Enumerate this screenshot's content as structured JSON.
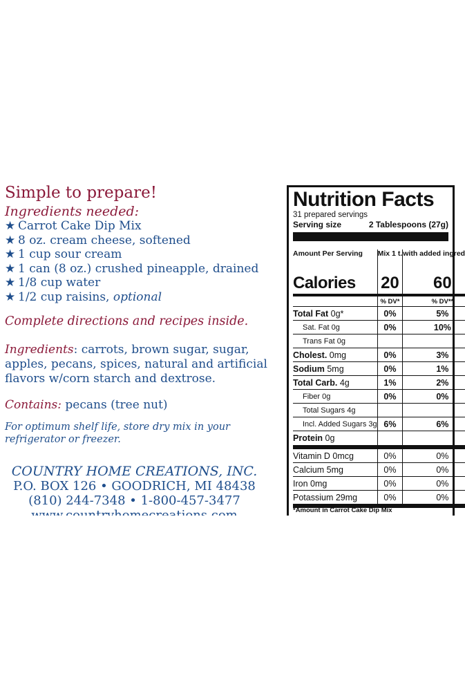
{
  "left": {
    "simple": "Simple to prepare!",
    "needed": "Ingredients needed:",
    "list": [
      "Carrot Cake Dip Mix",
      "8 oz. cream cheese, softened",
      "1 cup sour cream",
      "1 can (8 oz.) crushed pineapple, drained",
      "1/8 cup water",
      "1/2 cup raisins,"
    ],
    "list_optional": "optional",
    "star": "★",
    "complete": "Complete directions and recipes inside.",
    "ingredients_heading": "Ingredients",
    "ingredients_text": ":  carrots, brown sugar, sugar, apples, pecans, spices, natural and artificial flavors w/corn starch and dextrose.",
    "contains_heading": "Contains:",
    "contains_text": " pecans (tree nut)",
    "shelf": "For optimum shelf life, store dry mix in your refrigerator or freezer.",
    "company": "COUNTRY HOME CREATIONS, INC.",
    "address": "P.O. BOX 126 • GOODRICH, MI 48438",
    "phones": "(810) 244-7348 • 1-800-457-3477",
    "website": "www.countryhomecreations.com"
  },
  "nutrition": {
    "title": "Nutrition Facts",
    "servings": "31 prepared servings",
    "serving_size_label": "Serving size",
    "serving_size_value": "2 Tablespoons (27g)",
    "amount_per_serving": "Amount Per Serving",
    "col1": "Mix 1 t.",
    "col2": "with added ingredients",
    "calories_label": "Calories",
    "calories_mix": "20",
    "calories_added": "60",
    "dv1": "% DV*",
    "dv2": "% DV**",
    "rows": [
      {
        "label": "Total Fat",
        "amt": "0g*",
        "mix": "0%",
        "added": "5%"
      },
      {
        "label": "Sat. Fat 0g",
        "amt": "",
        "mix": "0%",
        "added": "10%"
      },
      {
        "label": "Trans Fat 0g",
        "amt": "",
        "mix": "",
        "added": ""
      },
      {
        "label": "Cholest.",
        "amt": "0mg",
        "mix": "0%",
        "added": "3%"
      },
      {
        "label": "Sodium",
        "amt": "5mg",
        "mix": "0%",
        "added": "1%"
      },
      {
        "label": "Total Carb.",
        "amt": "4g",
        "mix": "1%",
        "added": "2%"
      },
      {
        "label": "Fiber 0g",
        "amt": "",
        "mix": "0%",
        "added": "0%"
      },
      {
        "label": "Total Sugars 4g",
        "amt": "",
        "mix": "",
        "added": ""
      },
      {
        "label": "Incl. Added Sugars 3g",
        "amt": "",
        "mix": "6%",
        "added": "6%"
      },
      {
        "label": "Protein",
        "amt": "0g",
        "mix": "",
        "added": ""
      }
    ],
    "vitamins": [
      {
        "label": "Vitamin D 0mcg",
        "mix": "0%",
        "added": "0%"
      },
      {
        "label": "Calcium 5mg",
        "mix": "0%",
        "added": "0%"
      },
      {
        "label": "Iron 0mg",
        "mix": "0%",
        "added": "0%"
      },
      {
        "label": "Potassium 29mg",
        "mix": "0%",
        "added": "0%"
      }
    ],
    "footnote": "*Amount in Carrot Cake Dip Mix"
  }
}
